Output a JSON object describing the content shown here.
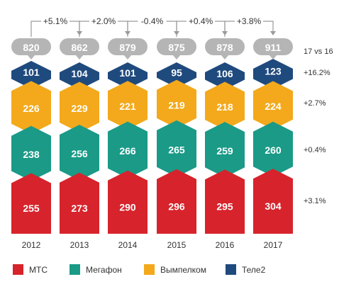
{
  "chart_data": {
    "type": "bar",
    "stacked": true,
    "categories": [
      "2012",
      "2013",
      "2014",
      "2015",
      "2016",
      "2017"
    ],
    "series": [
      {
        "name": "МТС",
        "color": "#d7232b",
        "values": [
          255,
          273,
          290,
          296,
          295,
          304
        ]
      },
      {
        "name": "Мегафон",
        "color": "#1a9a87",
        "values": [
          238,
          256,
          266,
          265,
          259,
          260
        ]
      },
      {
        "name": "Вымпелком",
        "color": "#f3a91b",
        "values": [
          226,
          229,
          221,
          219,
          218,
          224
        ]
      },
      {
        "name": "Теле2",
        "color": "#1f4a7e",
        "values": [
          101,
          104,
          101,
          95,
          106,
          123
        ]
      }
    ],
    "totals": [
      "820",
      "862",
      "879",
      "875",
      "878",
      "911"
    ],
    "yoy_changes": [
      "+5.1%",
      "+2.0%",
      "-0.4%",
      "+0.4%",
      "+3.8%"
    ],
    "comparison_label": "17 vs 16",
    "series_changes": {
      "Теле2": "+16.2%",
      "Вымпелком": "+2.7%",
      "Мегафон": "+0.4%",
      "МТС": "+3.1%"
    },
    "bubble_color": "#b5b5b5",
    "connector_color": "#9a9a9a"
  }
}
